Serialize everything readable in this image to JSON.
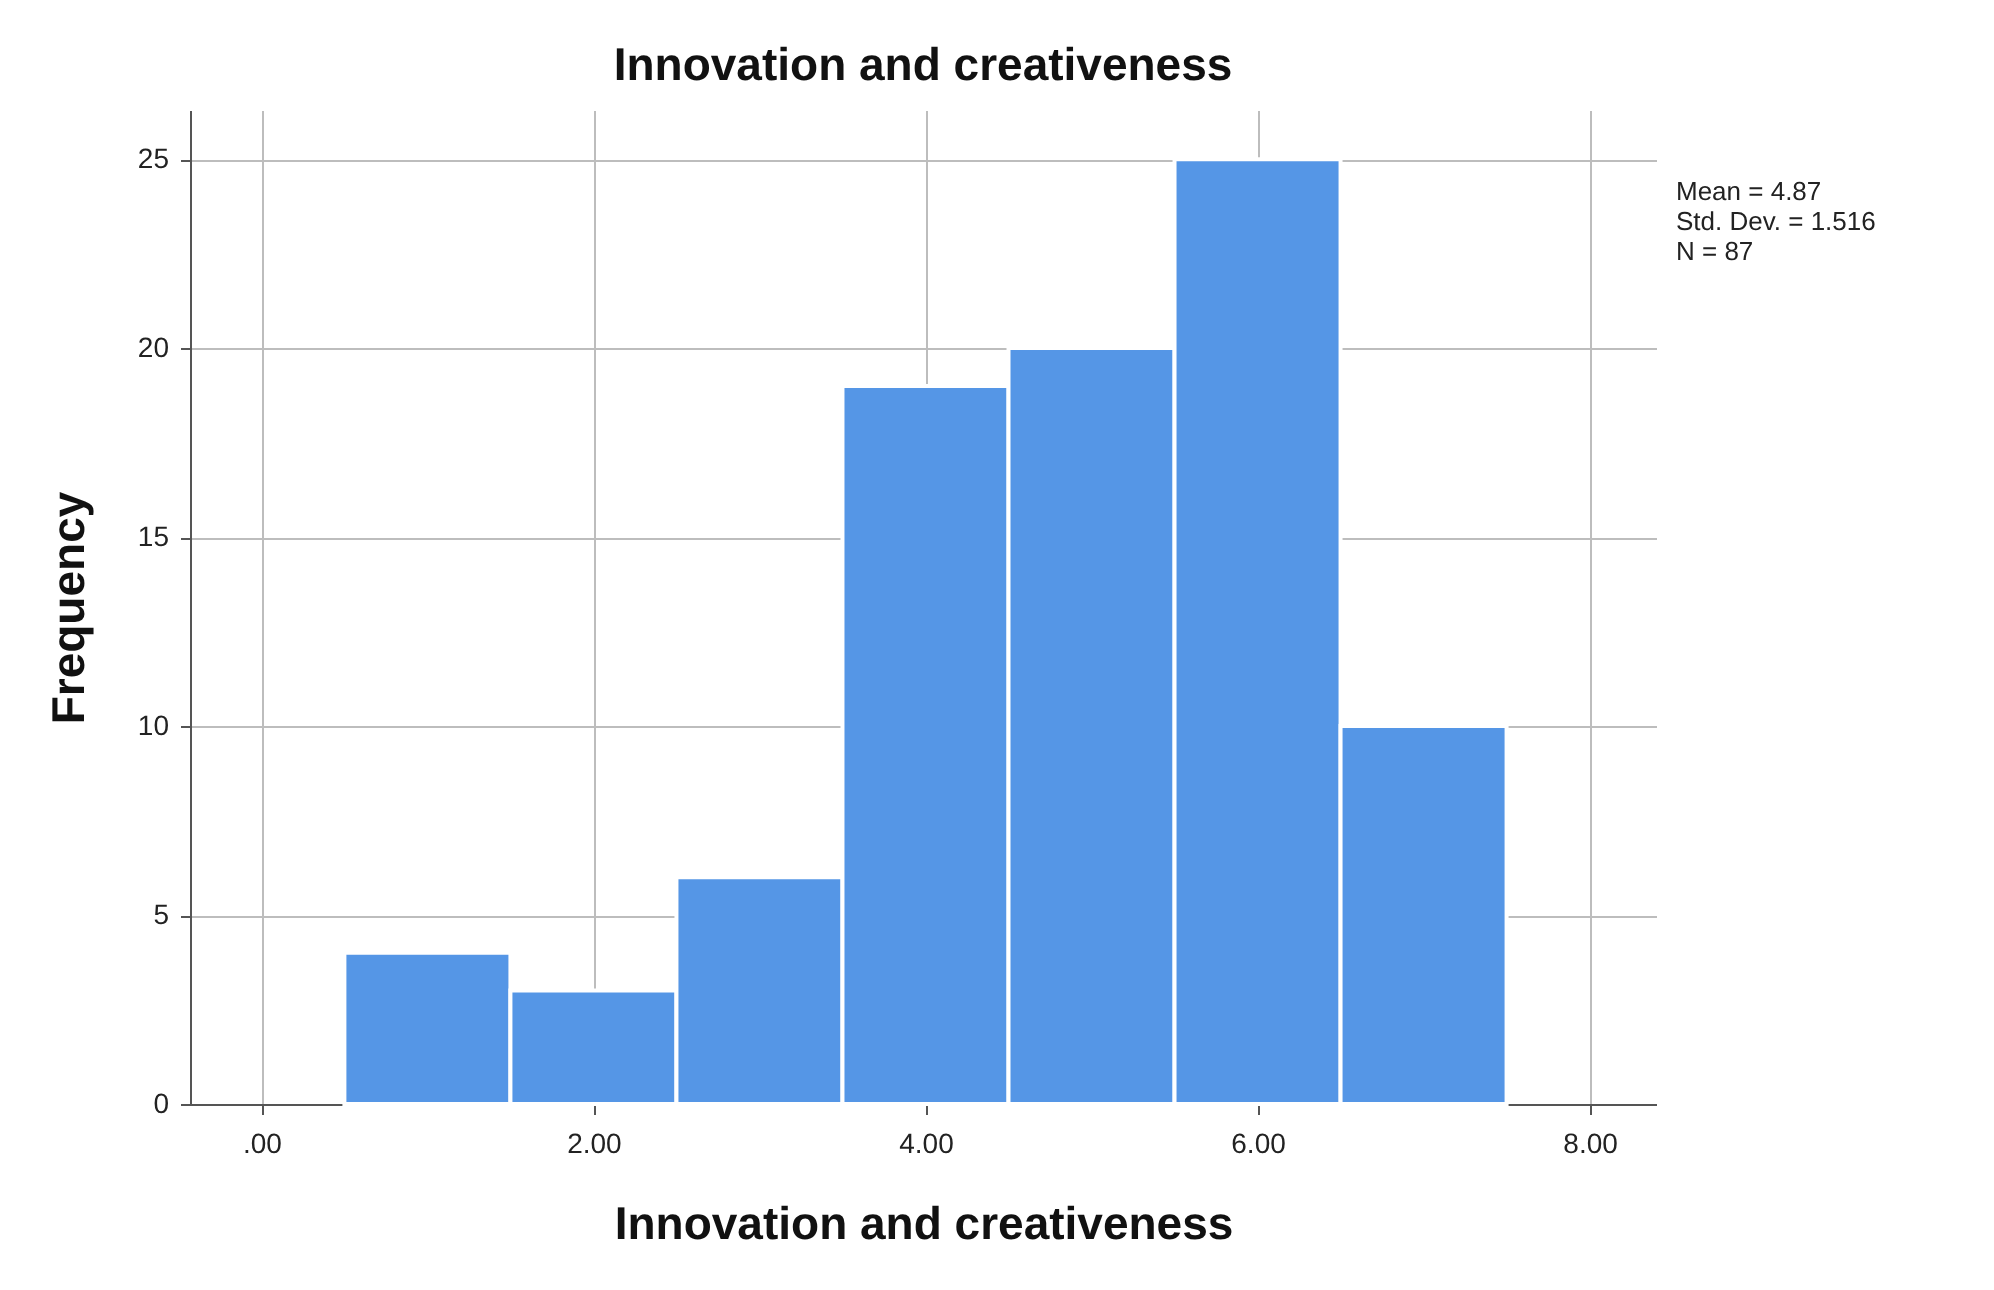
{
  "chart_data": {
    "type": "histogram",
    "title": "Innovation and creativeness",
    "xlabel": "Innovation and creativeness",
    "ylabel": "Frequency",
    "bins": [
      0.5,
      1.5,
      2.5,
      3.5,
      4.5,
      5.5,
      6.5,
      7.5
    ],
    "values": [
      4,
      3,
      6,
      19,
      20,
      25,
      10
    ],
    "color": "#5596e6",
    "xlim": [
      -0.43,
      8.4
    ],
    "xticks": [
      {
        "value": 0,
        "label": ".00"
      },
      {
        "value": 2,
        "label": "2.00"
      },
      {
        "value": 4,
        "label": "4.00"
      },
      {
        "value": 6,
        "label": "6.00"
      },
      {
        "value": 8,
        "label": "8.00"
      }
    ],
    "ylim": [
      0,
      26.3
    ],
    "yticks": [
      0,
      5,
      10,
      15,
      20,
      25
    ],
    "grid": true,
    "annotations": [
      "Mean = 4.87",
      "Std. Dev. = 1.516",
      "N = 87"
    ]
  }
}
